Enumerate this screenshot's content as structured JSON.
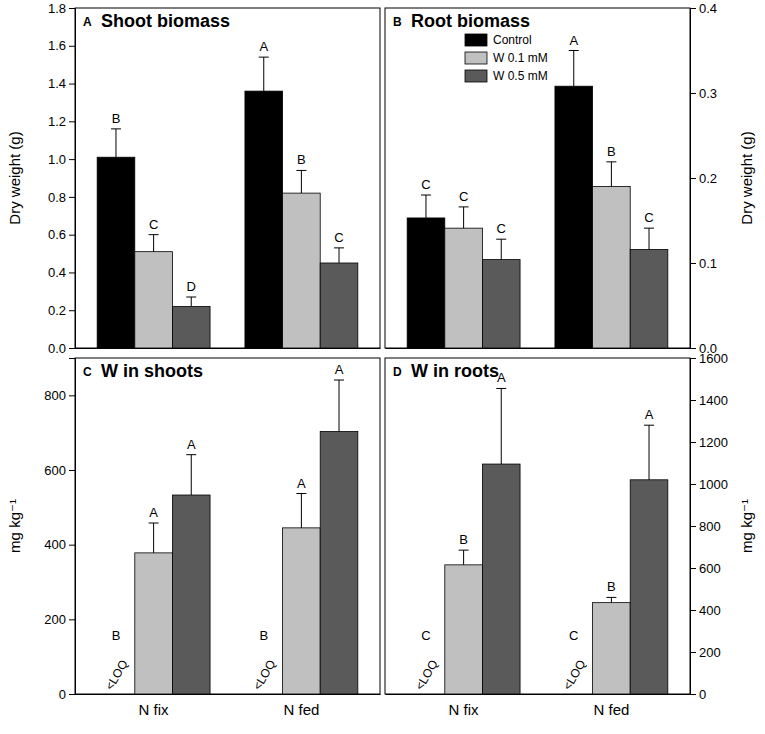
{
  "chart_data": [
    {
      "type": "bar",
      "panel": "A",
      "title": "Shoot biomass",
      "y_label": "Dry weight (g)",
      "categories": [
        null,
        null
      ],
      "tick_labels": "y",
      "ylim": [
        0,
        1.8
      ],
      "yticks": [
        {
          "value": 0,
          "label": "0.0"
        },
        {
          "value": 0.2,
          "label": "0.2"
        },
        {
          "value": 0.4,
          "label": "0.4"
        },
        {
          "value": 0.6,
          "label": "0.6"
        },
        {
          "value": 0.8,
          "label": "0.8"
        },
        {
          "value": 1.0,
          "label": "1.0"
        },
        {
          "value": 1.2,
          "label": "1.2"
        },
        {
          "value": 1.4,
          "label": "1.4"
        },
        {
          "value": 1.6,
          "label": "1.6"
        },
        {
          "value": 1.8,
          "label": "1.8"
        }
      ],
      "series": [
        {
          "color": "#000000",
          "values": [
            1.01,
            1.36
          ],
          "errors": [
            0.15,
            0.18
          ],
          "letters": [
            "B",
            "A"
          ]
        },
        {
          "color": "#c0c0c0",
          "values": [
            0.51,
            0.82
          ],
          "errors": [
            0.09,
            0.12
          ],
          "letters": [
            "C",
            "B"
          ]
        },
        {
          "color": "#5a5a5a",
          "values": [
            0.22,
            0.45
          ],
          "errors": [
            0.05,
            0.08
          ],
          "letters": [
            "D",
            "C"
          ]
        }
      ]
    },
    {
      "type": "bar",
      "panel": "B",
      "title": "Root biomass",
      "y_label": "Dry weight (g)",
      "categories": [
        null,
        null
      ],
      "tick_labels": "y",
      "legend": "upper left",
      "ylim": [
        0,
        0.4
      ],
      "yticks": [
        {
          "value": 0,
          "label": "0.0"
        },
        {
          "value": 0.1,
          "label": "0.1"
        },
        {
          "value": 0.2,
          "label": "0.2"
        },
        {
          "value": 0.3,
          "label": "0.3"
        },
        {
          "value": 0.4,
          "label": "0.4"
        }
      ],
      "series": [
        {
          "name": "Control",
          "color": "#000000",
          "values": [
            0.153,
            0.308
          ],
          "errors": [
            0.027,
            0.042
          ],
          "letters": [
            "C",
            "A"
          ]
        },
        {
          "name": "W 0.1 mM",
          "color": "#c0c0c0",
          "values": [
            0.141,
            0.19
          ],
          "errors": [
            0.025,
            0.029
          ],
          "letters": [
            "C",
            "B"
          ]
        },
        {
          "name": "W 0.5 mM",
          "color": "#5a5a5a",
          "values": [
            0.104,
            0.116
          ],
          "errors": [
            0.024,
            0.025
          ],
          "letters": [
            "C",
            "C"
          ]
        }
      ]
    },
    {
      "type": "bar",
      "panel": "C",
      "title": "W in shoots",
      "y_label": "mg kg⁻¹",
      "categories": [
        "N fix",
        "N fed"
      ],
      "ylim": [
        0,
        900
      ],
      "yticks": [
        0,
        200,
        400,
        600,
        800
      ],
      "series": [
        {
          "color": "#000000",
          "values": [
            null,
            null
          ],
          "value_labels": [
            "<LOQ",
            "<LOQ"
          ],
          "letters": [
            "B",
            "B"
          ]
        },
        {
          "color": "#c0c0c0",
          "values": [
            378,
            445
          ],
          "errors": [
            80,
            92
          ],
          "letters": [
            "A",
            "A"
          ]
        },
        {
          "color": "#5a5a5a",
          "values": [
            533,
            703
          ],
          "errors": [
            108,
            138
          ],
          "letters": [
            "A",
            "A"
          ]
        }
      ]
    },
    {
      "type": "bar",
      "panel": "D",
      "title": "W in roots",
      "y_label": "mg kg⁻¹",
      "categories": [
        "N fix",
        "N fed"
      ],
      "ylim": [
        0,
        1600
      ],
      "yticks": [
        0,
        200,
        400,
        600,
        800,
        1000,
        1200,
        1400,
        1600
      ],
      "series": [
        {
          "color": "#000000",
          "values": [
            null,
            null
          ],
          "value_labels": [
            "<LOQ",
            "<LOQ"
          ],
          "letters": [
            "C",
            "C"
          ]
        },
        {
          "color": "#c0c0c0",
          "values": [
            615,
            435
          ],
          "errors": [
            70,
            25
          ],
          "letters": [
            "B",
            "B"
          ]
        },
        {
          "color": "#5a5a5a",
          "values": [
            1095,
            1020
          ],
          "errors": [
            360,
            260
          ],
          "letters": [
            "A",
            "A"
          ]
        }
      ]
    }
  ]
}
